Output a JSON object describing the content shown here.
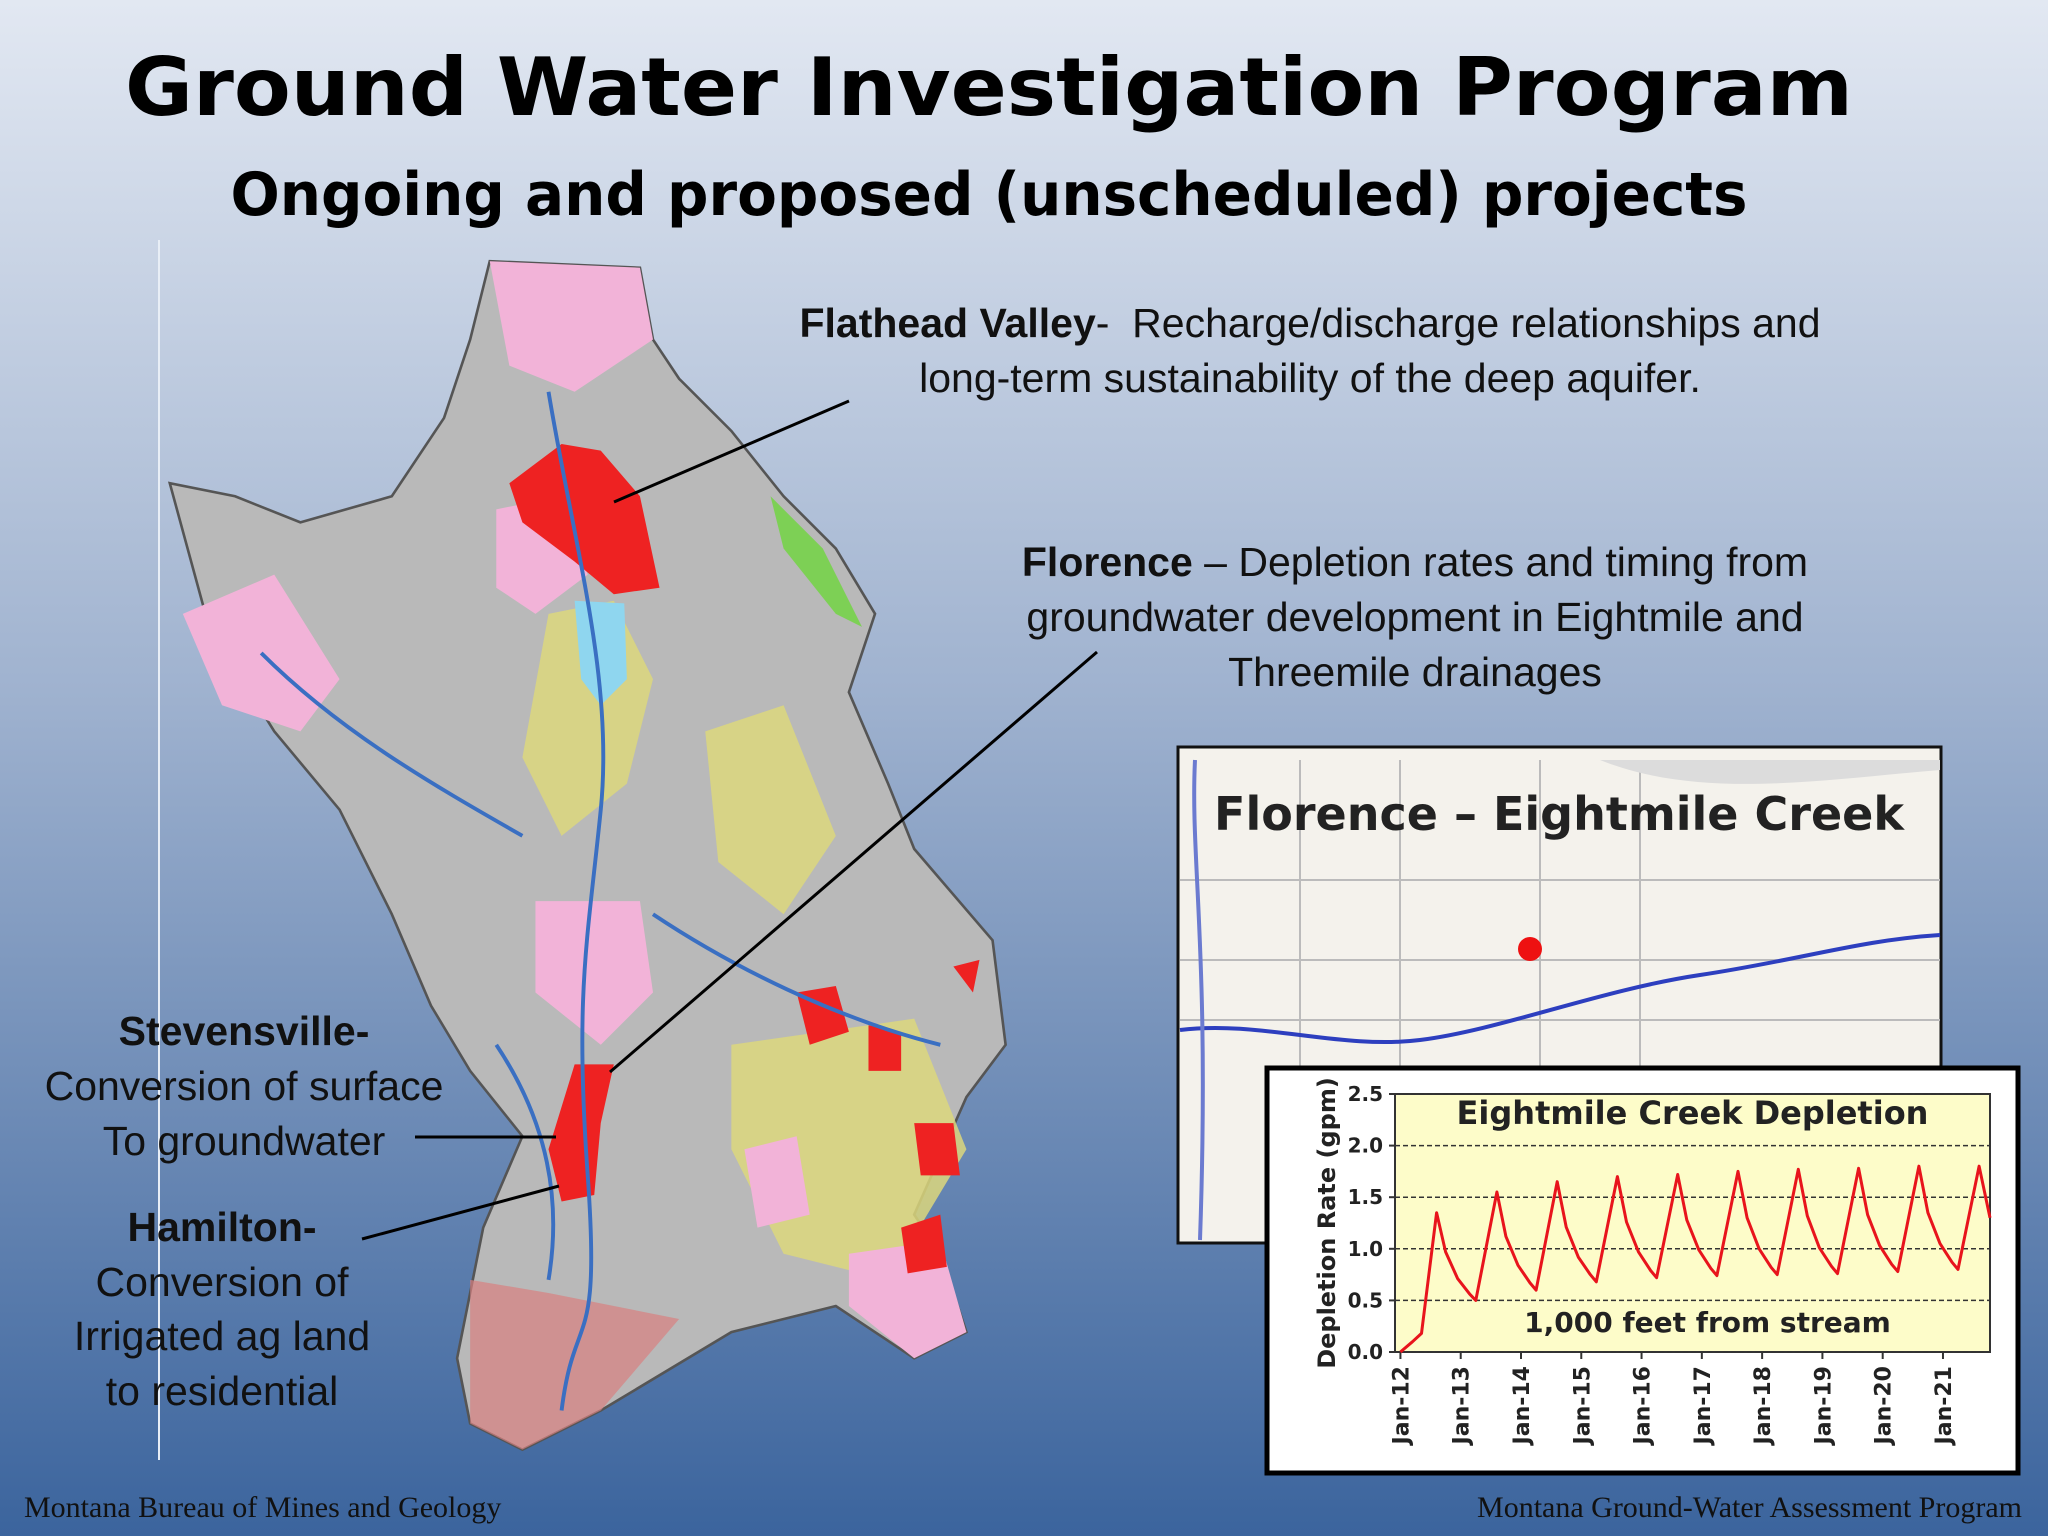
{
  "title": "Ground Water Investigation Program",
  "subtitle": "Ongoing and proposed (unscheduled) projects",
  "annotations": {
    "flathead": {
      "label": "Flathead Valley",
      "lines": [
        "-  Recharge/discharge relationships and",
        "long-term sustainability of the deep aquifer."
      ]
    },
    "florence": {
      "label": "Florence",
      "lines": [
        " – Depletion rates and timing from",
        "groundwater development in Eightmile and",
        "Threemile drainages"
      ]
    },
    "stevensville": {
      "label": "Stevensville-",
      "lines": [
        "Conversion of surface",
        "To groundwater"
      ]
    },
    "hamilton": {
      "label": "Hamilton-",
      "lines": [
        "Conversion of",
        "Irrigated ag land",
        "to residential"
      ]
    }
  },
  "inset_map": {
    "title": "Florence – Eightmile Creek"
  },
  "chart_data": {
    "type": "line",
    "title": "Eightmile Creek Depletion",
    "ylabel": "Depletion Rate (gpm)",
    "annotation": "1,000 feet from stream",
    "color": "#e8141c",
    "grid": true,
    "x": [
      2012.0,
      2012.2,
      2012.35,
      2012.6,
      2012.75,
      2012.95,
      2013.15,
      2013.25,
      2013.6,
      2013.75,
      2013.95,
      2014.15,
      2014.25,
      2014.6,
      2014.75,
      2014.95,
      2015.15,
      2015.25,
      2015.6,
      2015.75,
      2015.95,
      2016.15,
      2016.25,
      2016.6,
      2016.75,
      2016.95,
      2017.15,
      2017.25,
      2017.6,
      2017.75,
      2017.95,
      2018.15,
      2018.25,
      2018.6,
      2018.75,
      2018.95,
      2019.15,
      2019.25,
      2019.6,
      2019.75,
      2019.95,
      2020.15,
      2020.25,
      2020.6,
      2020.75,
      2020.95,
      2021.15,
      2021.25,
      2021.6,
      2021.78
    ],
    "values": [
      0.0,
      0.1,
      0.18,
      1.35,
      0.97,
      0.71,
      0.56,
      0.5,
      1.55,
      1.12,
      0.84,
      0.67,
      0.6,
      1.65,
      1.21,
      0.92,
      0.75,
      0.68,
      1.7,
      1.26,
      0.97,
      0.79,
      0.72,
      1.72,
      1.28,
      0.99,
      0.81,
      0.74,
      1.75,
      1.3,
      1.0,
      0.82,
      0.75,
      1.77,
      1.32,
      1.01,
      0.83,
      0.76,
      1.78,
      1.33,
      1.03,
      0.85,
      0.78,
      1.8,
      1.35,
      1.05,
      0.87,
      0.8,
      1.8,
      1.3
    ],
    "xlim": [
      2011.91,
      2021.78
    ],
    "xticks": [
      {
        "value": 2012,
        "label": "Jan-12"
      },
      {
        "value": 2013,
        "label": "Jan-13"
      },
      {
        "value": 2014,
        "label": "Jan-14"
      },
      {
        "value": 2015,
        "label": "Jan-15"
      },
      {
        "value": 2016,
        "label": "Jan-16"
      },
      {
        "value": 2017,
        "label": "Jan-17"
      },
      {
        "value": 2018,
        "label": "Jan-18"
      },
      {
        "value": 2019,
        "label": "Jan-19"
      },
      {
        "value": 2020,
        "label": "Jan-20"
      },
      {
        "value": 2021,
        "label": "Jan-21"
      }
    ],
    "ylim": [
      0,
      2.5
    ],
    "yticks": [
      {
        "value": 0,
        "label": "0.0"
      },
      {
        "value": 0.5,
        "label": "0.5"
      },
      {
        "value": 1,
        "label": "1.0"
      },
      {
        "value": 1.5,
        "label": "1.5"
      },
      {
        "value": 2,
        "label": "2.0"
      },
      {
        "value": 2.5,
        "label": "2.5"
      }
    ]
  },
  "footer": {
    "left": "Montana Bureau of Mines and Geology",
    "right": "Montana Ground-Water Assessment Program"
  }
}
